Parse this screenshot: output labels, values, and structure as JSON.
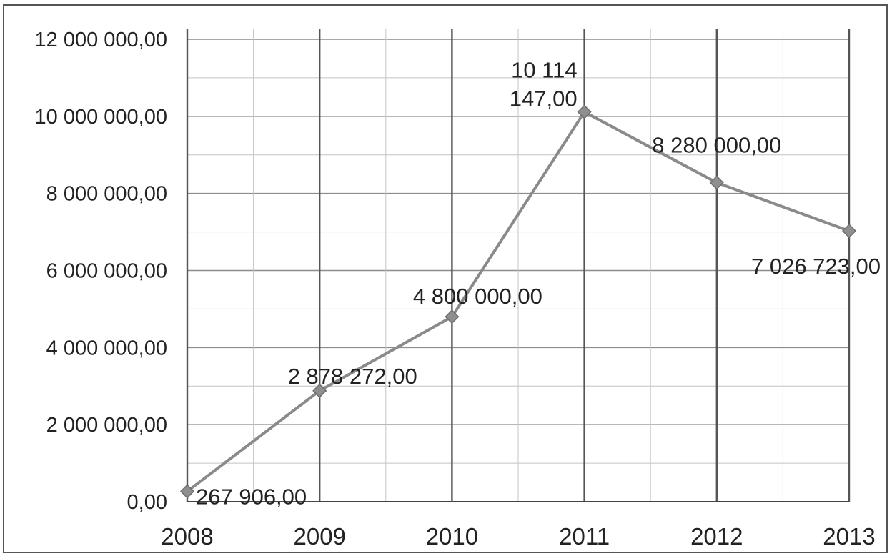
{
  "chart_data": {
    "type": "line",
    "title": "",
    "xlabel": "",
    "ylabel": "",
    "categories": [
      "2008",
      "2009",
      "2010",
      "2011",
      "2012",
      "2013"
    ],
    "series": [
      {
        "values": [
          267906,
          2878272,
          4800000,
          10114147,
          8280000,
          7026723
        ],
        "color": "#8a8a8a",
        "marker": "diamond"
      }
    ],
    "data_labels": [
      [
        "267 906,00"
      ],
      [
        "2 878 272,00"
      ],
      [
        "4 800 000,00"
      ],
      [
        "10 114",
        "147,00"
      ],
      [
        "8 280 000,00"
      ],
      [
        "7 026 723,00"
      ]
    ],
    "ylim": [
      0,
      12000000
    ],
    "yticks": [
      0,
      2000000,
      4000000,
      6000000,
      8000000,
      10000000,
      12000000
    ],
    "ytick_labels": [
      "0,00",
      "2 000 000,00",
      "4 000 000,00",
      "6 000 000,00",
      "8 000 000,00",
      "10 000 000,00",
      "12 000 000,00"
    ],
    "grid": true,
    "legend": "none"
  }
}
